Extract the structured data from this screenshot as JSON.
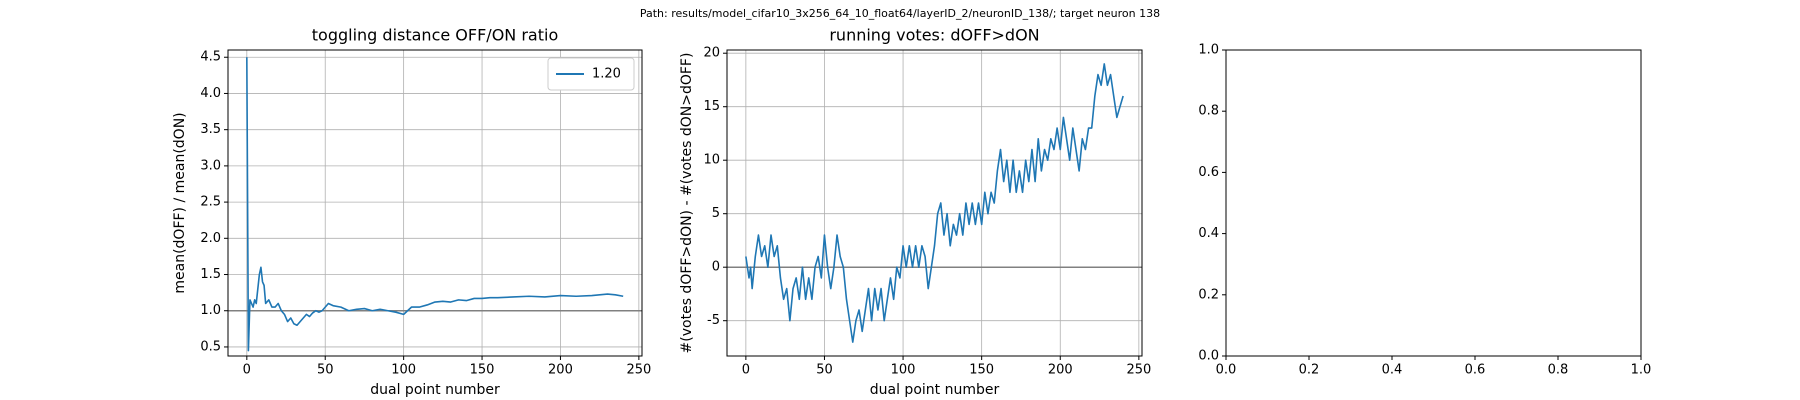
{
  "title": "Path: results/model_cifar10_3x256_64_10_float64/layerID_2/neuronID_138/; target neuron 138",
  "chart_data": [
    {
      "type": "line",
      "title": "toggling distance OFF/ON ratio",
      "x_label": "dual point number",
      "y_label": "mean(dOFF) / mean(dON)",
      "xlim": [
        -12,
        252
      ],
      "ylim": [
        0.375,
        4.6
      ],
      "xticks": [
        0,
        50,
        100,
        150,
        200,
        250
      ],
      "yticks": [
        0.5,
        {
          "value": 1,
          "label": "1.0"
        },
        1.5,
        {
          "value": 2,
          "label": "2.0"
        },
        2.5,
        {
          "value": 3,
          "label": "3.0"
        },
        3.5,
        {
          "value": 4,
          "label": "4.0"
        },
        4.5
      ],
      "grid": true,
      "legend": "upper right",
      "hlines": [
        {
          "value": 1,
          "color": "#808080"
        }
      ],
      "x": [
        0,
        1,
        2,
        3,
        4,
        5,
        6,
        8,
        9,
        10,
        11,
        12,
        14,
        16,
        18,
        20,
        22,
        24,
        26,
        28,
        30,
        32,
        34,
        36,
        38,
        40,
        42,
        44,
        46,
        48,
        50,
        52,
        55,
        60,
        65,
        70,
        75,
        80,
        85,
        90,
        95,
        100,
        105,
        110,
        115,
        120,
        125,
        130,
        135,
        140,
        145,
        150,
        155,
        160,
        170,
        180,
        190,
        200,
        210,
        220,
        230,
        235,
        240
      ],
      "series": [
        {
          "name": "1.20",
          "color": "#1f77b4",
          "values": [
            4.5,
            0.45,
            1.15,
            1.1,
            1.05,
            1.15,
            1.1,
            1.5,
            1.6,
            1.4,
            1.35,
            1.1,
            1.15,
            1.05,
            1.05,
            1.1,
            1.0,
            0.95,
            0.85,
            0.9,
            0.82,
            0.8,
            0.85,
            0.9,
            0.95,
            0.92,
            0.97,
            1.0,
            0.98,
            1.0,
            1.05,
            1.1,
            1.07,
            1.05,
            1.0,
            1.02,
            1.03,
            1.0,
            1.02,
            1.0,
            0.98,
            0.95,
            1.05,
            1.05,
            1.08,
            1.12,
            1.13,
            1.12,
            1.15,
            1.14,
            1.17,
            1.17,
            1.18,
            1.18,
            1.19,
            1.2,
            1.19,
            1.21,
            1.2,
            1.21,
            1.23,
            1.22,
            1.2
          ]
        }
      ]
    },
    {
      "type": "line",
      "title": "running votes: dOFF>dON",
      "x_label": "dual point number",
      "y_label": "#(votes dOFF>dON) - #(votes dON>dOFF)",
      "xlim": [
        -12,
        252
      ],
      "ylim": [
        -8.3,
        20.3
      ],
      "xticks": [
        0,
        50,
        100,
        150,
        200,
        250
      ],
      "yticks": [
        -5,
        0,
        5,
        10,
        15,
        20
      ],
      "grid": true,
      "hlines": [
        {
          "value": 0,
          "color": "#808080"
        }
      ],
      "x": [
        0,
        2,
        3,
        4,
        6,
        8,
        10,
        12,
        14,
        16,
        18,
        20,
        22,
        24,
        26,
        28,
        30,
        32,
        34,
        36,
        38,
        40,
        42,
        44,
        46,
        48,
        50,
        52,
        54,
        56,
        58,
        60,
        62,
        64,
        66,
        68,
        70,
        72,
        74,
        76,
        78,
        80,
        82,
        84,
        86,
        88,
        90,
        92,
        94,
        96,
        98,
        100,
        102,
        104,
        106,
        108,
        110,
        112,
        114,
        116,
        118,
        120,
        122,
        124,
        126,
        128,
        130,
        132,
        134,
        136,
        138,
        140,
        142,
        144,
        146,
        148,
        150,
        152,
        154,
        156,
        158,
        160,
        162,
        164,
        166,
        168,
        170,
        172,
        174,
        176,
        178,
        180,
        182,
        184,
        186,
        188,
        190,
        192,
        194,
        196,
        198,
        200,
        202,
        204,
        206,
        208,
        210,
        212,
        214,
        216,
        218,
        220,
        222,
        224,
        226,
        228,
        230,
        232,
        234,
        236,
        238,
        240
      ],
      "series": [
        {
          "color": "#1f77b4",
          "values": [
            1,
            -1,
            0,
            -2,
            1,
            3,
            1,
            2,
            0,
            3,
            1,
            2,
            -1,
            -3,
            -2,
            -5,
            -2,
            -1,
            -3,
            0,
            -3,
            -1,
            -3,
            0,
            1,
            -1,
            3,
            0,
            -2,
            0,
            3,
            1,
            0,
            -3,
            -5,
            -7,
            -5,
            -4,
            -6,
            -4,
            -2,
            -5,
            -2,
            -4,
            -2,
            -5,
            -3,
            -1,
            -3,
            0,
            -1,
            2,
            0,
            2,
            0,
            2,
            0,
            2,
            1,
            -2,
            0,
            2,
            5,
            6,
            3,
            5,
            2,
            4,
            3,
            5,
            3,
            6,
            4,
            6,
            4,
            6,
            4,
            7,
            5,
            7,
            6,
            9,
            11,
            8,
            10,
            7,
            10,
            7,
            9,
            7,
            10,
            8,
            11,
            8,
            12,
            9,
            11,
            10,
            12,
            11,
            13,
            11,
            14,
            12,
            10,
            13,
            11,
            9,
            12,
            11,
            13,
            13,
            16,
            18,
            17,
            19,
            17,
            18,
            16,
            14,
            15,
            16
          ]
        }
      ]
    },
    {
      "type": "line",
      "xlim": [
        0,
        1
      ],
      "ylim": [
        0,
        1
      ],
      "xticks": [
        {
          "value": 0,
          "label": "0.0"
        },
        0.2,
        0.4,
        0.6,
        0.8,
        {
          "value": 1,
          "label": "1.0"
        }
      ],
      "yticks": [
        {
          "value": 0,
          "label": "0.0"
        },
        0.2,
        0.4,
        0.6,
        0.8,
        {
          "value": 1,
          "label": "1.0"
        }
      ],
      "grid": false,
      "series": []
    }
  ]
}
